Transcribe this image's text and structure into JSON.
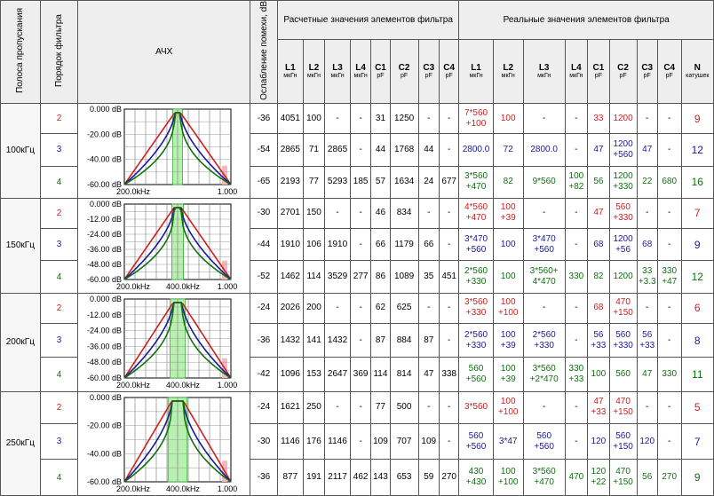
{
  "headers": {
    "band": "Полоса пропускания",
    "order": "Порядок фильтра",
    "afc": "АЧХ",
    "atten": "Ослабление помехи, dB",
    "calc_group": "Расчетные значения элементов фильтра",
    "real_group": "Реальные значения элементов фильтра",
    "calc_cols": [
      {
        "name": "L1",
        "unit": "мкГн"
      },
      {
        "name": "L2",
        "unit": "мкГн"
      },
      {
        "name": "L3",
        "unit": "мкГн"
      },
      {
        "name": "L4",
        "unit": "мкГн"
      },
      {
        "name": "C1",
        "unit": "pF"
      },
      {
        "name": "C2",
        "unit": "pF"
      },
      {
        "name": "C3",
        "unit": "pF"
      },
      {
        "name": "C4",
        "unit": "pF"
      }
    ],
    "real_cols": [
      {
        "name": "L1",
        "unit": "мкГн"
      },
      {
        "name": "L2",
        "unit": "мкГн"
      },
      {
        "name": "L3",
        "unit": "мкГн"
      },
      {
        "name": "L4",
        "unit": "мкГн"
      },
      {
        "name": "C1",
        "unit": "pF"
      },
      {
        "name": "C2",
        "unit": "pF"
      },
      {
        "name": "C3",
        "unit": "pF"
      },
      {
        "name": "C4",
        "unit": "pF"
      },
      {
        "name": "N",
        "unit": "катушек"
      }
    ]
  },
  "colors": {
    "order2": "#cc2020",
    "order3": "#1a1a99",
    "order4": "#107010"
  },
  "groups": [
    {
      "band": "100кГц",
      "graph": {
        "ylabels": [
          "0.000 dB",
          "-20.00 dB",
          "-40.00 dB",
          "-60.00 dB"
        ],
        "xlabels": [
          "200.0kHz",
          "",
          "1.000"
        ],
        "width": 0.09,
        "steep": [
          1.0,
          1.6,
          2.4
        ]
      },
      "rows": [
        {
          "order": "2",
          "atten": "-36",
          "calc": [
            "4051",
            "100",
            "-",
            "-",
            "31",
            "1250",
            "-",
            "-"
          ],
          "real": [
            "7*560\n+100",
            "100",
            "-",
            "-",
            "33",
            "1200",
            "-",
            "-"
          ],
          "n": "9"
        },
        {
          "order": "3",
          "atten": "-54",
          "calc": [
            "2865",
            "71",
            "2865",
            "-",
            "44",
            "1768",
            "44",
            "-"
          ],
          "real": [
            "2800.0",
            "72",
            "2800.0",
            "-",
            "47",
            "1200\n+560",
            "47",
            "-"
          ],
          "n": "12"
        },
        {
          "order": "4",
          "atten": "-65",
          "calc": [
            "2193",
            "77",
            "5293",
            "185",
            "57",
            "1634",
            "24",
            "677"
          ],
          "real": [
            "3*560\n+470",
            "82",
            "9*560",
            "100\n+82",
            "56",
            "1200\n+330",
            "22",
            "680"
          ],
          "n": "16"
        }
      ]
    },
    {
      "band": "150кГц",
      "graph": {
        "ylabels": [
          "0.000 dB",
          "-12.00 dB",
          "-24.00 dB",
          "-36.00 dB",
          "-48.00 dB",
          "-60.00 dB"
        ],
        "xlabels": [
          "200.0kHz",
          "400.0kHz",
          "1.000"
        ],
        "width": 0.11,
        "steep": [
          1.0,
          1.6,
          2.4
        ]
      },
      "rows": [
        {
          "order": "2",
          "atten": "-30",
          "calc": [
            "2701",
            "150",
            "-",
            "-",
            "46",
            "834",
            "-",
            "-"
          ],
          "real": [
            "4*560\n+470",
            "100\n+39",
            "-",
            "-",
            "47",
            "560\n+330",
            "-",
            "-"
          ],
          "n": "7"
        },
        {
          "order": "3",
          "atten": "-44",
          "calc": [
            "1910",
            "106",
            "1910",
            "-",
            "66",
            "1179",
            "66",
            "-"
          ],
          "real": [
            "3*470\n+560",
            "100",
            "3*470\n+560",
            "-",
            "68",
            "1200\n+56",
            "68",
            "-"
          ],
          "n": "9"
        },
        {
          "order": "4",
          "atten": "-52",
          "calc": [
            "1462",
            "114",
            "3529",
            "277",
            "86",
            "1089",
            "35",
            "451"
          ],
          "real": [
            "2*560\n+330",
            "100",
            "3*560+\n4*470",
            "330",
            "82",
            "1200",
            "33\n+3.3",
            "330\n+47"
          ],
          "n": "12"
        }
      ]
    },
    {
      "band": "200кГц",
      "graph": {
        "ylabels": [
          "0.000 dB",
          "-12.00 dB",
          "-24.00 dB",
          "-36.00 dB",
          "-48.00 dB",
          "-60.00 dB"
        ],
        "xlabels": [
          "200.0kHz",
          "400.0kHz",
          "1.000"
        ],
        "width": 0.14,
        "steep": [
          1.0,
          1.6,
          2.4
        ]
      },
      "rows": [
        {
          "order": "2",
          "atten": "-24",
          "calc": [
            "2026",
            "200",
            "-",
            "-",
            "62",
            "625",
            "-",
            "-"
          ],
          "real": [
            "3*560\n+330",
            "100\n+100",
            "-",
            "-",
            "68",
            "470\n+150",
            "-",
            "-"
          ],
          "n": "6"
        },
        {
          "order": "3",
          "atten": "-36",
          "calc": [
            "1432",
            "141",
            "1432",
            "-",
            "87",
            "884",
            "87",
            "-"
          ],
          "real": [
            "2*560\n+330",
            "100\n+39",
            "2*560\n+330",
            "-",
            "56\n+33",
            "560\n+330",
            "56\n+33",
            "-"
          ],
          "n": "8"
        },
        {
          "order": "4",
          "atten": "-42",
          "calc": [
            "1096",
            "153",
            "2647",
            "369",
            "114",
            "814",
            "47",
            "338"
          ],
          "real": [
            "560\n+560",
            "100\n+39",
            "3*560\n+2*470",
            "330\n+33",
            "100",
            "560",
            "47",
            "330"
          ],
          "n": "11"
        }
      ]
    },
    {
      "band": "250кГц",
      "graph": {
        "ylabels": [
          "0.000 dB",
          "-20.00 dB",
          "-40.00 dB",
          "-60.00 dB"
        ],
        "xlabels": [
          "200.0kHz",
          "400.0kHz",
          "1.000"
        ],
        "width": 0.18,
        "steep": [
          1.0,
          1.6,
          2.4
        ]
      },
      "rows": [
        {
          "order": "2",
          "atten": "-24",
          "calc": [
            "1621",
            "250",
            "-",
            "-",
            "77",
            "500",
            "-",
            "-"
          ],
          "real": [
            "3*560",
            "100\n+100",
            "-",
            "-",
            "47\n+33",
            "470\n+150",
            "-",
            "-"
          ],
          "n": "5"
        },
        {
          "order": "3",
          "atten": "-30",
          "calc": [
            "1146",
            "176",
            "1146",
            "-",
            "109",
            "707",
            "109",
            "-"
          ],
          "real": [
            "560\n+560",
            "3*47",
            "560\n+560",
            "-",
            "120",
            "560\n+150",
            "120",
            "-"
          ],
          "n": "7"
        },
        {
          "order": "4",
          "atten": "-36",
          "calc": [
            "877",
            "191",
            "2117",
            "462",
            "143",
            "653",
            "59",
            "270"
          ],
          "real": [
            "430\n+430",
            "100\n+100",
            "3*560\n+470",
            "470",
            "120\n+22",
            "470\n+150",
            "56",
            "270"
          ],
          "n": "9"
        }
      ]
    }
  ]
}
